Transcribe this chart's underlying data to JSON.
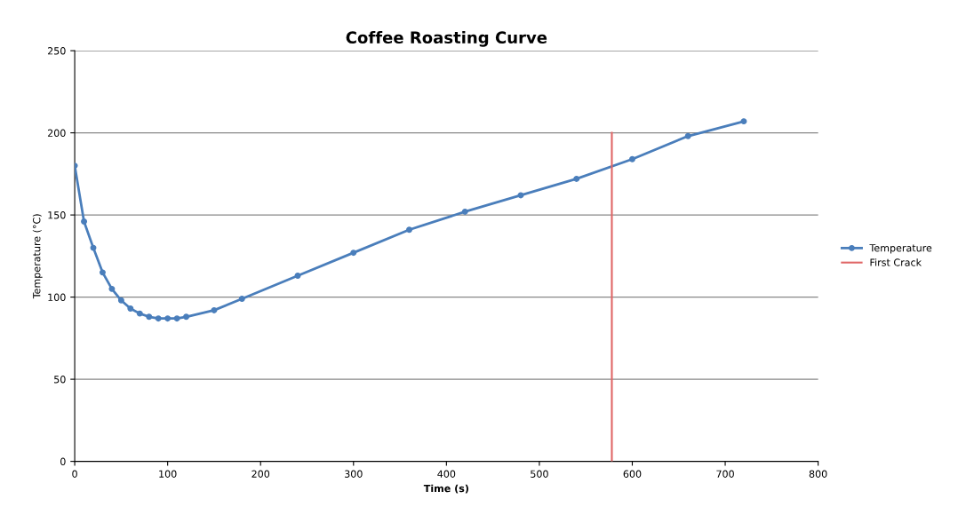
{
  "chart_data": {
    "type": "line",
    "title": "Coffee Roasting Curve",
    "xlabel": "Time (s)",
    "ylabel": "Temperature (°C)",
    "xlim": [
      0,
      800
    ],
    "xticks": [
      0,
      100,
      200,
      300,
      400,
      500,
      600,
      700,
      800
    ],
    "ylim": [
      0,
      250
    ],
    "yticks": [
      0,
      50,
      100,
      150,
      200,
      250
    ],
    "grid": "y",
    "legend": "right",
    "series": [
      {
        "name": "Temperature",
        "color": "#4a7ebb",
        "marker": "circle",
        "x": [
          0,
          10,
          20,
          30,
          40,
          50,
          60,
          70,
          80,
          90,
          100,
          110,
          120,
          150,
          180,
          240,
          300,
          360,
          420,
          480,
          540,
          600,
          660,
          720
        ],
        "values": [
          180,
          146,
          130,
          115,
          105,
          98,
          93,
          90,
          88,
          87,
          87,
          87,
          88,
          92,
          99,
          113,
          127,
          141,
          152,
          162,
          172,
          184,
          198,
          207
        ]
      },
      {
        "name": "First Crack",
        "color": "#e06666",
        "x": [
          578,
          578
        ],
        "values": [
          0,
          200
        ]
      }
    ]
  }
}
